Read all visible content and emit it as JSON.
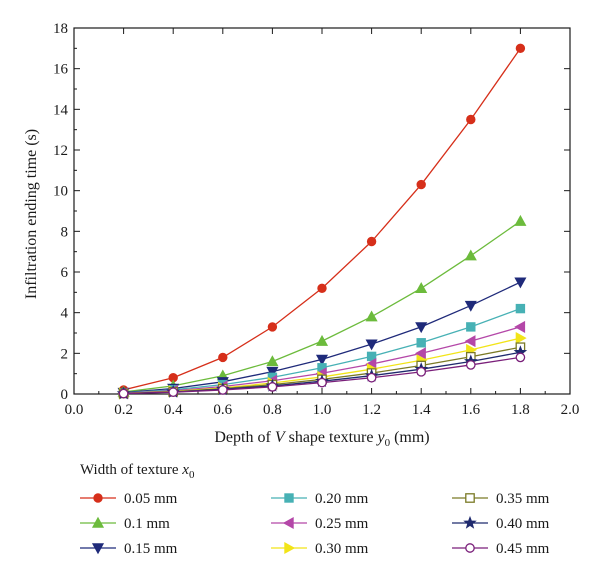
{
  "chart_data": {
    "type": "line",
    "xlabel_parts": [
      "Depth of ",
      "V",
      " shape texture ",
      "y",
      "0",
      " (mm)"
    ],
    "ylabel": "Infiltration ending time (s)",
    "xlim": [
      0.0,
      2.0
    ],
    "ylim": [
      0,
      18
    ],
    "xticks": [
      "0.0",
      "0.2",
      "0.4",
      "0.6",
      "0.8",
      "1.0",
      "1.2",
      "1.4",
      "1.6",
      "1.8",
      "2.0"
    ],
    "yticks": [
      "0",
      "2",
      "4",
      "6",
      "8",
      "10",
      "12",
      "14",
      "16",
      "18"
    ],
    "grid": false,
    "legend_title_parts": [
      "Width of texture ",
      "x",
      "0"
    ],
    "legend_placement": "bottom",
    "x": [
      0.2,
      0.4,
      0.6,
      0.8,
      1.0,
      1.2,
      1.4,
      1.6,
      1.8
    ],
    "series": [
      {
        "name": "0.05 mm",
        "color": "#d62f1a",
        "marker": "circle-filled",
        "values": [
          0.2,
          0.8,
          1.8,
          3.3,
          5.2,
          7.5,
          10.3,
          13.5,
          17.0
        ]
      },
      {
        "name": "0.1 mm",
        "color": "#6cbb3c",
        "marker": "triangle-up",
        "values": [
          0.1,
          0.4,
          0.9,
          1.6,
          2.6,
          3.8,
          5.2,
          6.8,
          8.5
        ]
      },
      {
        "name": "0.15 mm",
        "color": "#1f2a7a",
        "marker": "triangle-down",
        "values": [
          0.07,
          0.27,
          0.6,
          1.1,
          1.7,
          2.45,
          3.3,
          4.35,
          5.5
        ]
      },
      {
        "name": "0.20 mm",
        "color": "#47b1b5",
        "marker": "square-filled",
        "values": [
          0.05,
          0.21,
          0.46,
          0.82,
          1.29,
          1.85,
          2.52,
          3.3,
          4.2
        ]
      },
      {
        "name": "0.25 mm",
        "color": "#b447a8",
        "marker": "triangle-left",
        "values": [
          0.04,
          0.16,
          0.37,
          0.65,
          1.02,
          1.47,
          2.0,
          2.6,
          3.3
        ]
      },
      {
        "name": "0.30 mm",
        "color": "#f2e418",
        "marker": "triangle-right",
        "values": [
          0.03,
          0.13,
          0.3,
          0.54,
          0.84,
          1.22,
          1.66,
          2.17,
          2.75
        ]
      },
      {
        "name": "0.35 mm",
        "color": "#7b7a26",
        "marker": "square-open",
        "values": [
          0.03,
          0.11,
          0.26,
          0.46,
          0.72,
          1.03,
          1.4,
          1.83,
          2.3
        ]
      },
      {
        "name": "0.40 mm",
        "color": "#1f2a6e",
        "marker": "star",
        "values": [
          0.02,
          0.1,
          0.23,
          0.4,
          0.63,
          0.9,
          1.22,
          1.6,
          2.05
        ]
      },
      {
        "name": "0.45 mm",
        "color": "#7a1f7a",
        "marker": "circle-open",
        "values": [
          0.02,
          0.09,
          0.2,
          0.35,
          0.56,
          0.8,
          1.09,
          1.43,
          1.8
        ]
      }
    ]
  }
}
